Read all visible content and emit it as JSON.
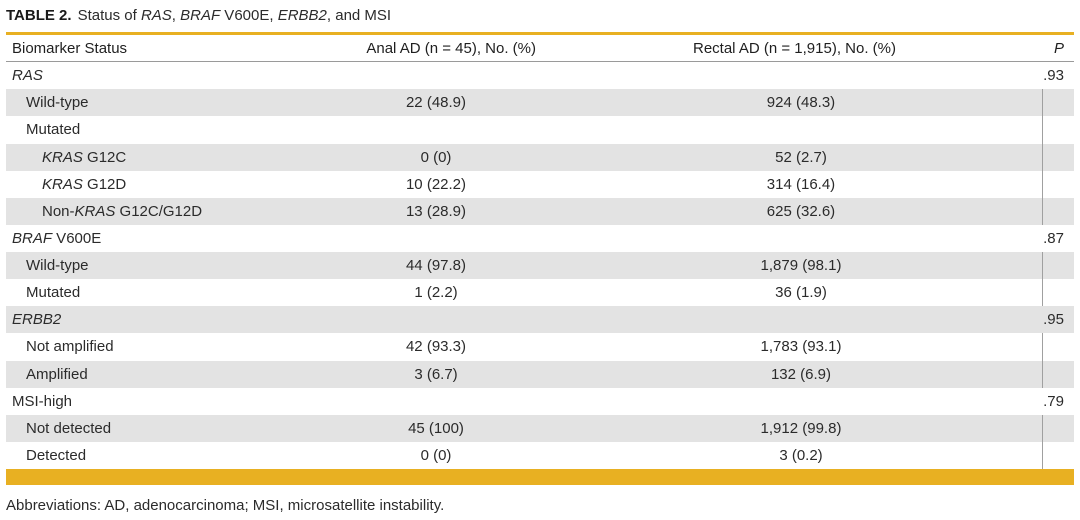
{
  "title": {
    "label": "TABLE 2.",
    "text_1": "Status of ",
    "ras": "RAS",
    "text_2": ", ",
    "braf": "BRAF",
    "text_3": " V600E, ",
    "erbb2": "ERBB2",
    "text_4": ", and MSI"
  },
  "header": {
    "biomarker": "Biomarker Status",
    "anal": "Anal AD (n = 45), No. (%)",
    "rectal": "Rectal AD (n = 1,915), No. (%)",
    "p": "P"
  },
  "rows": [
    {
      "pre": "",
      "it": "RAS",
      "post": "",
      "anal": "",
      "rectal": "",
      "p": ".93"
    },
    {
      "pre": "Wild-type",
      "it": "",
      "post": "",
      "anal": "22 (48.9)",
      "rectal": "924 (48.3)",
      "p": ""
    },
    {
      "pre": "Mutated",
      "it": "",
      "post": "",
      "anal": "",
      "rectal": "",
      "p": ""
    },
    {
      "pre": "",
      "it": "KRAS",
      "post": " G12C",
      "anal": "0 (0)",
      "rectal": "52 (2.7)",
      "p": ""
    },
    {
      "pre": "",
      "it": "KRAS",
      "post": " G12D",
      "anal": "10 (22.2)",
      "rectal": "314 (16.4)",
      "p": ""
    },
    {
      "pre": "Non-",
      "it": "KRAS",
      "post": " G12C/G12D",
      "anal": "13 (28.9)",
      "rectal": "625 (32.6)",
      "p": ""
    },
    {
      "pre": "",
      "it": "BRAF",
      "post": " V600E",
      "anal": "",
      "rectal": "",
      "p": ".87"
    },
    {
      "pre": "Wild-type",
      "it": "",
      "post": "",
      "anal": "44 (97.8)",
      "rectal": "1,879 (98.1)",
      "p": ""
    },
    {
      "pre": "Mutated",
      "it": "",
      "post": "",
      "anal": "1 (2.2)",
      "rectal": "36 (1.9)",
      "p": ""
    },
    {
      "pre": "",
      "it": "ERBB2",
      "post": "",
      "anal": "",
      "rectal": "",
      "p": ".95"
    },
    {
      "pre": "Not amplified",
      "it": "",
      "post": "",
      "anal": "42 (93.3)",
      "rectal": "1,783 (93.1)",
      "p": ""
    },
    {
      "pre": "Amplified",
      "it": "",
      "post": "",
      "anal": "3 (6.7)",
      "rectal": "132 (6.9)",
      "p": ""
    },
    {
      "pre": "MSI-high",
      "it": "",
      "post": "",
      "anal": "",
      "rectal": "",
      "p": ".79"
    },
    {
      "pre": "Not detected",
      "it": "",
      "post": "",
      "anal": "45 (100)",
      "rectal": "1,912 (99.8)",
      "p": ""
    },
    {
      "pre": "Detected",
      "it": "",
      "post": "",
      "anal": "0 (0)",
      "rectal": "3 (0.2)",
      "p": ""
    }
  ],
  "footnote": "Abbreviations: AD, adenocarcinoma; MSI, microsatellite instability.",
  "colors": {
    "accent": "#e8b022",
    "row_shade": "#e3e3e3",
    "text": "#2b2b2b"
  }
}
